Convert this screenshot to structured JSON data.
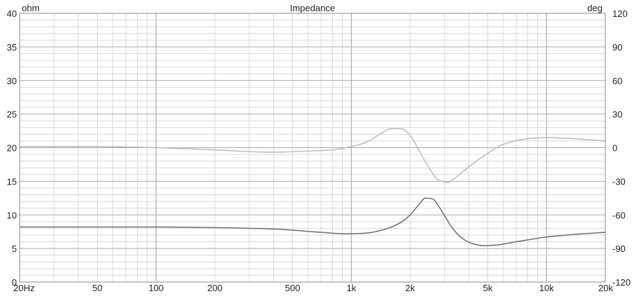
{
  "chart_data": {
    "type": "line",
    "title": "Impedance",
    "ylabel": "ohm",
    "y2label": "deg",
    "xscale": "log",
    "xlim": [
      20,
      20000
    ],
    "ylim": [
      0,
      40
    ],
    "y2lim": [
      -120,
      120
    ],
    "grid": true,
    "x_ticks": [
      {
        "value": 20,
        "label": "20Hz"
      },
      {
        "value": 50,
        "label": "50"
      },
      {
        "value": 100,
        "label": "100"
      },
      {
        "value": 200,
        "label": "200"
      },
      {
        "value": 500,
        "label": "500"
      },
      {
        "value": 1000,
        "label": "1k"
      },
      {
        "value": 2000,
        "label": "2k"
      },
      {
        "value": 5000,
        "label": "5k"
      },
      {
        "value": 10000,
        "label": "10k"
      },
      {
        "value": 20000,
        "label": "20k"
      }
    ],
    "y_ticks": [
      "0",
      "5",
      "10",
      "15",
      "20",
      "25",
      "30",
      "35",
      "40"
    ],
    "y2_ticks": [
      "-120",
      "-90",
      "-60",
      "-30",
      "0",
      "30",
      "60",
      "90",
      "120"
    ],
    "series": [
      {
        "axis": "left",
        "color": "#6e6e6e",
        "x": [
          20,
          50,
          100,
          200,
          400,
          700,
          900,
          1000,
          1200,
          1500,
          1800,
          2000,
          2200,
          2400,
          2600,
          2800,
          3000,
          3300,
          3700,
          4200,
          4800,
          5500,
          7000,
          10000,
          14000,
          20000
        ],
        "y": [
          8.2,
          8.2,
          8.2,
          8.1,
          7.9,
          7.4,
          7.2,
          7.2,
          7.3,
          7.9,
          8.9,
          10.0,
          11.4,
          12.5,
          12.4,
          11.3,
          9.9,
          8.0,
          6.5,
          5.7,
          5.4,
          5.5,
          6.0,
          6.7,
          7.1,
          7.4
        ]
      },
      {
        "axis": "right",
        "color": "#bbbbbb",
        "x": [
          20,
          50,
          100,
          200,
          400,
          600,
          800,
          1000,
          1200,
          1400,
          1600,
          1800,
          2000,
          2200,
          2500,
          2800,
          3100,
          3400,
          4000,
          5000,
          6000,
          8000,
          10000,
          14000,
          20000
        ],
        "y": [
          1,
          1,
          0,
          -2,
          -4,
          -3,
          -2,
          1,
          5,
          12,
          17,
          17,
          11,
          -1,
          -18,
          -29,
          -31,
          -27,
          -17,
          -5,
          3,
          8,
          9,
          8,
          6
        ]
      }
    ]
  }
}
